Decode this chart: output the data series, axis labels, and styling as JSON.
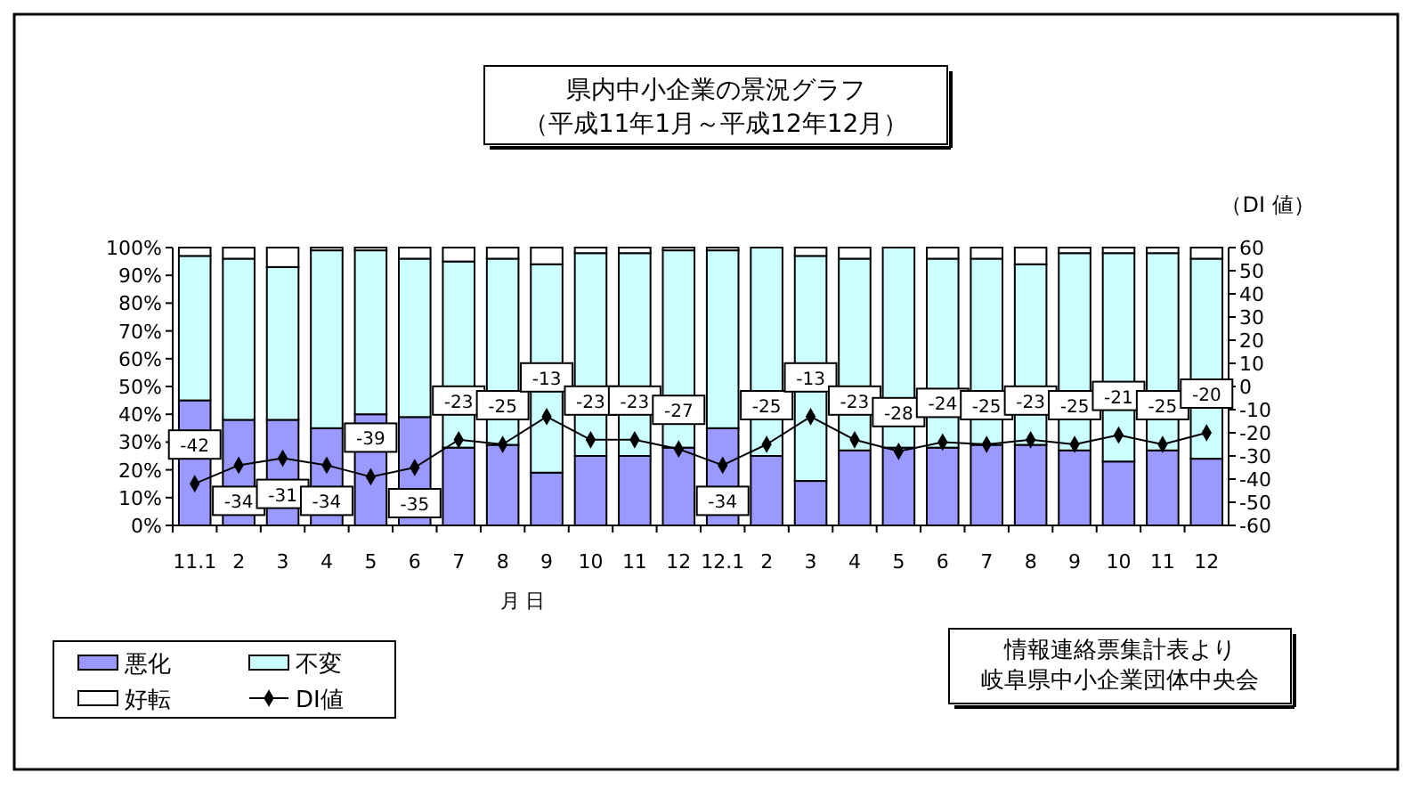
{
  "chart_data": {
    "type": "bar",
    "title": "県内中小企業の景況グラフ",
    "subtitle": "（平成11年1月～平成12年12月）",
    "xlabel": "月 日",
    "y2label": "（DI 値）",
    "categories": [
      "11.1",
      "2",
      "3",
      "4",
      "5",
      "6",
      "7",
      "8",
      "9",
      "10",
      "11",
      "12",
      "12.1",
      "2",
      "3",
      "4",
      "5",
      "6",
      "7",
      "8",
      "9",
      "10",
      "11",
      "12"
    ],
    "stacked": true,
    "series": [
      {
        "name": "悪化",
        "color": "#9999ff",
        "values": [
          45,
          38,
          38,
          35,
          40,
          39,
          28,
          29,
          19,
          25,
          25,
          28,
          35,
          25,
          16,
          27,
          28,
          28,
          29,
          29,
          27,
          23,
          27,
          24
        ]
      },
      {
        "name": "不変",
        "color": "#ccffff",
        "values": [
          52,
          58,
          55,
          64,
          59,
          57,
          67,
          67,
          75,
          73,
          73,
          71,
          64,
          75,
          81,
          69,
          72,
          68,
          67,
          65,
          71,
          75,
          71,
          72
        ]
      },
      {
        "name": "好転",
        "color": "#ffffff",
        "values": [
          3,
          4,
          7,
          1,
          1,
          4,
          5,
          4,
          6,
          2,
          2,
          1,
          1,
          0,
          3,
          4,
          0,
          4,
          4,
          6,
          2,
          2,
          2,
          4
        ]
      },
      {
        "name": "DI値",
        "type": "line",
        "axis": "y2",
        "color": "#000000",
        "marker": "diamond",
        "values": [
          -42,
          -34,
          -31,
          -34,
          -39,
          -35,
          -23,
          -25,
          -13,
          -23,
          -23,
          -27,
          -34,
          -25,
          -13,
          -23,
          -28,
          -24,
          -25,
          -23,
          -25,
          -21,
          -25,
          -20
        ],
        "value_labels": [
          "-42",
          "-34",
          "-31",
          "-34",
          "-39",
          "-35",
          "-23",
          "-25",
          "-13",
          "-23",
          "-23",
          "-27",
          "-34",
          "-25",
          "-13",
          "-23",
          "-28",
          "-24",
          "-25",
          "-23",
          "-25",
          "-21",
          "-25",
          "-20"
        ]
      }
    ],
    "ylim": [
      0,
      100
    ],
    "yticks": [
      {
        "value": 0,
        "label": "0%"
      },
      {
        "value": 10,
        "label": "10%"
      },
      {
        "value": 20,
        "label": "20%"
      },
      {
        "value": 30,
        "label": "30%"
      },
      {
        "value": 40,
        "label": "40%"
      },
      {
        "value": 50,
        "label": "50%"
      },
      {
        "value": 60,
        "label": "60%"
      },
      {
        "value": 70,
        "label": "70%"
      },
      {
        "value": 80,
        "label": "80%"
      },
      {
        "value": 90,
        "label": "90%"
      },
      {
        "value": 100,
        "label": "100%"
      }
    ],
    "y2lim": [
      -60,
      60
    ],
    "y2ticks": [
      -60,
      -50,
      -40,
      -30,
      -20,
      -10,
      0,
      10,
      20,
      30,
      40,
      50,
      60
    ],
    "grid": false,
    "legend": "bottom left",
    "annotations": [
      "情報連絡票集計表より",
      "岐阜県中小企業団体中央会"
    ]
  }
}
